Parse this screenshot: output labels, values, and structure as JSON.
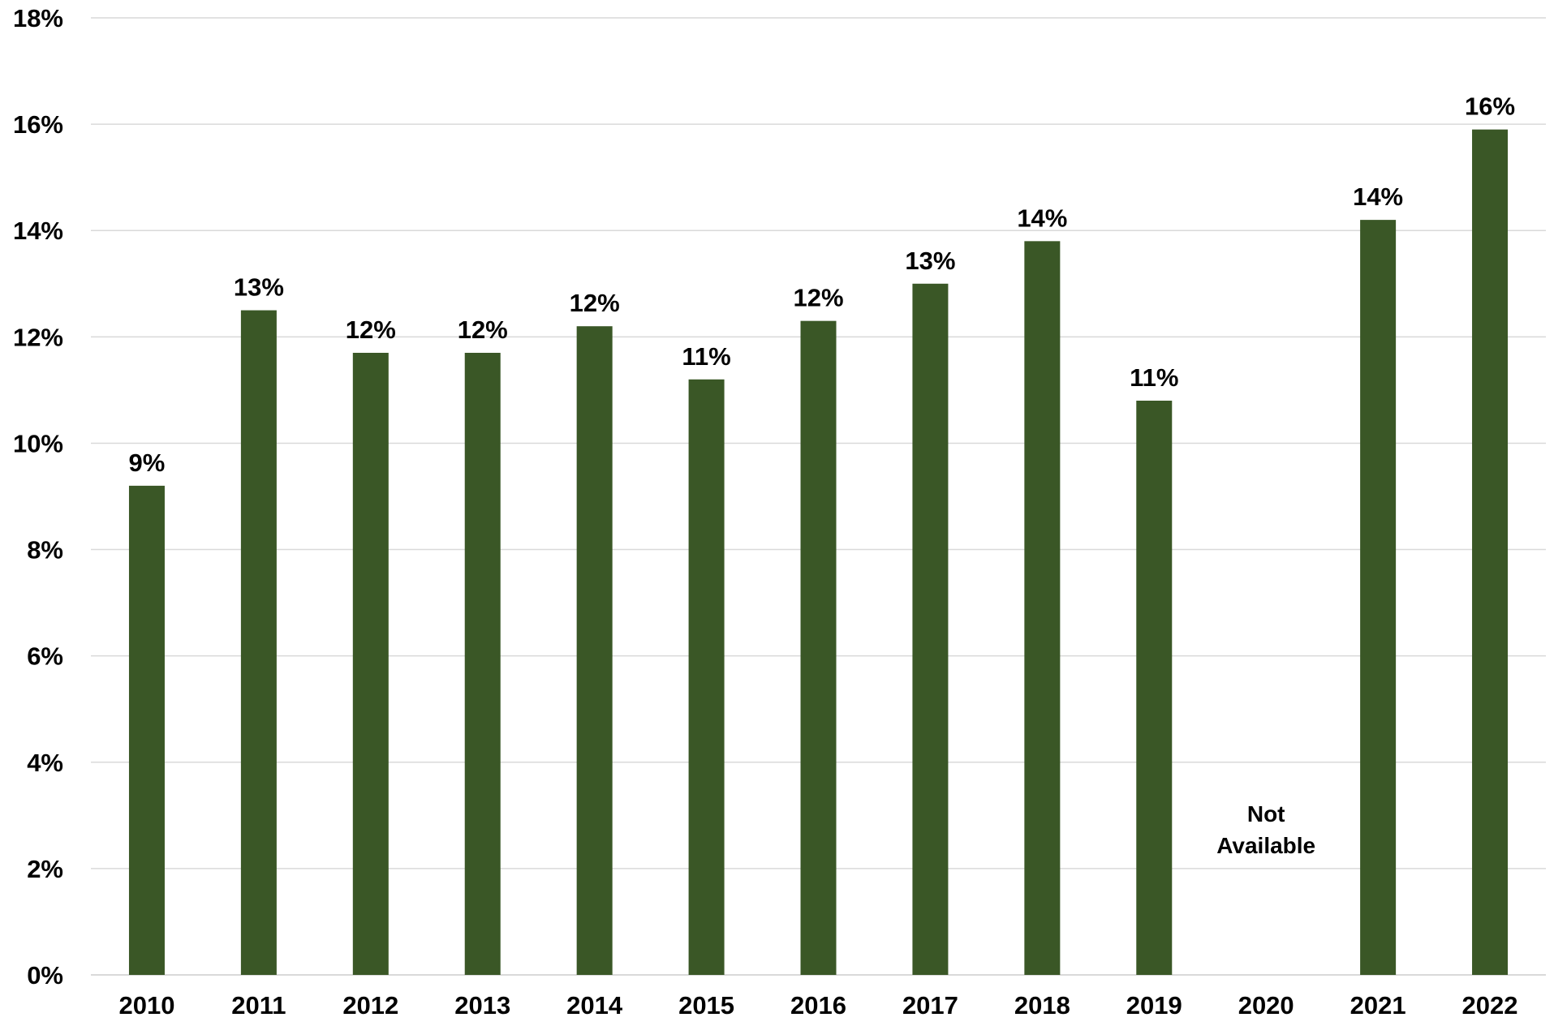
{
  "colors": {
    "bar": "#3a5726",
    "grid": "#d9d9d9",
    "axis": "#d9d9d9",
    "text": "#000000"
  },
  "chart_data": {
    "type": "bar",
    "title": "",
    "xlabel": "",
    "ylabel": "",
    "ylim": [
      0,
      18
    ],
    "y_unit": "%",
    "y_ticks": [
      {
        "value": 0,
        "label": "0%"
      },
      {
        "value": 2,
        "label": "2%"
      },
      {
        "value": 4,
        "label": "4%"
      },
      {
        "value": 6,
        "label": "6%"
      },
      {
        "value": 8,
        "label": "8%"
      },
      {
        "value": 10,
        "label": "10%"
      },
      {
        "value": 12,
        "label": "12%"
      },
      {
        "value": 14,
        "label": "14%"
      },
      {
        "value": 16,
        "label": "16%"
      },
      {
        "value": 18,
        "label": "18%"
      }
    ],
    "grid": true,
    "legend": "none",
    "categories": [
      "2010",
      "2011",
      "2012",
      "2013",
      "2014",
      "2015",
      "2016",
      "2017",
      "2018",
      "2019",
      "2020",
      "2021",
      "2022"
    ],
    "values": [
      9.2,
      12.5,
      11.7,
      11.7,
      12.2,
      11.2,
      12.3,
      13.0,
      13.8,
      10.8,
      null,
      14.2,
      15.9
    ],
    "data_labels": [
      "9%",
      "13%",
      "12%",
      "12%",
      "12%",
      "11%",
      "12%",
      "13%",
      "14%",
      "11%",
      "",
      "14%",
      "16%"
    ],
    "annotations": [
      {
        "category": "2020",
        "lines": [
          "Not",
          "Available"
        ]
      }
    ]
  }
}
